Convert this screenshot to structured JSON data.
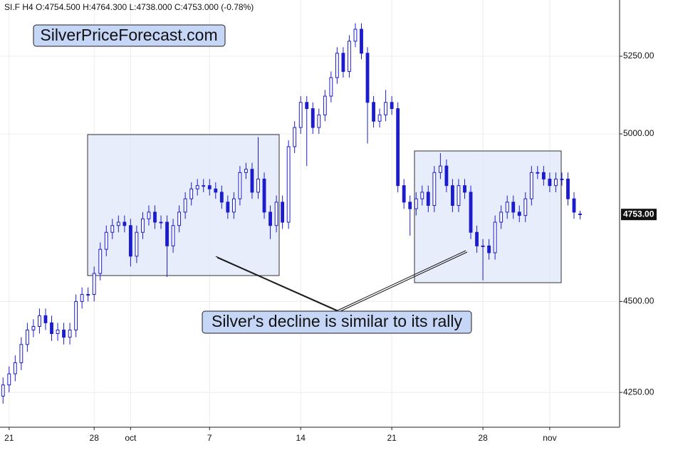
{
  "chart_data": {
    "type": "candlestick",
    "title": "SI.F  H4  O:4754.500  H:4764.300  L:4738.000  C:4753.000  (-0.78%)",
    "watermark": "SilverPriceForecast.com",
    "annotation": "Silver's decline is similar to its rally",
    "color": "#1c1ccf",
    "log_scale": true,
    "grid": true,
    "xlim": [
      -0.5,
      101.5
    ],
    "ylim": [
      4158,
      5439
    ],
    "yticks": [
      {
        "value": 4250,
        "label": "4250.00"
      },
      {
        "value": 4500,
        "label": "4500.00"
      },
      {
        "value": 5000,
        "label": "5000.00"
      },
      {
        "value": 5250,
        "label": "5250.00"
      }
    ],
    "xticks": [
      {
        "value": 1,
        "label": "21"
      },
      {
        "value": 15,
        "label": "28"
      },
      {
        "value": 21,
        "label": "oct"
      },
      {
        "value": 34,
        "label": "7"
      },
      {
        "value": 49,
        "label": "14"
      },
      {
        "value": 64,
        "label": "21"
      },
      {
        "value": 79,
        "label": "28"
      },
      {
        "value": 90,
        "label": "nov"
      }
    ],
    "last_price": {
      "value": 4753,
      "label": "4753.00"
    },
    "open": [
      4240,
      4270,
      4300,
      4330,
      4380,
      4420,
      4430,
      4460,
      4440,
      4410,
      4420,
      4400,
      4420,
      4500,
      4520,
      4520,
      4580,
      4650,
      4700,
      4720,
      4730,
      4720,
      4630,
      4700,
      4740,
      4760,
      4730,
      4730,
      4660,
      4720,
      4760,
      4800,
      4830,
      4840,
      4840,
      4830,
      4820,
      4790,
      4760,
      4800,
      4880,
      4890,
      4820,
      4860,
      4760,
      4720,
      4790,
      4730,
      4960,
      5020,
      5100,
      5080,
      5020,
      5060,
      5120,
      5180,
      5260,
      5200,
      5300,
      5340,
      5260,
      5100,
      5040,
      5060,
      5100,
      5080,
      4840,
      4790,
      4770,
      4800,
      4820,
      4780,
      4880,
      4900,
      4840,
      4780,
      4840,
      4820,
      4700,
      4660,
      4660,
      4640,
      4730,
      4760,
      4790,
      4760,
      4750,
      4800,
      4880,
      4880,
      4860,
      4840,
      4860,
      4860,
      4800,
      4754.5
    ],
    "high": [
      4290,
      4320,
      4350,
      4400,
      4440,
      4450,
      4480,
      4480,
      4460,
      4440,
      4440,
      4440,
      4520,
      4540,
      4540,
      4600,
      4670,
      4720,
      4740,
      4750,
      4750,
      4740,
      4720,
      4760,
      4780,
      4780,
      4750,
      4750,
      4740,
      4780,
      4820,
      4850,
      4860,
      4860,
      4860,
      4850,
      4840,
      4810,
      4820,
      4900,
      4910,
      4910,
      4990,
      4880,
      4780,
      4810,
      4810,
      4980,
      5040,
      5120,
      5120,
      5100,
      5080,
      5140,
      5200,
      5280,
      5280,
      5320,
      5360,
      5360,
      5280,
      5120,
      5080,
      5140,
      5120,
      5100,
      4860,
      4810,
      4820,
      4840,
      4840,
      4900,
      4940,
      4920,
      4860,
      4860,
      4860,
      4840,
      4720,
      4680,
      4680,
      4750,
      4780,
      4810,
      4810,
      4780,
      4820,
      4900,
      4900,
      4900,
      4880,
      4880,
      4880,
      4880,
      4820,
      4764.3
    ],
    "low": [
      4220,
      4250,
      4280,
      4310,
      4360,
      4400,
      4410,
      4420,
      4390,
      4390,
      4380,
      4380,
      4400,
      4480,
      4500,
      4500,
      4560,
      4630,
      4680,
      4700,
      4700,
      4600,
      4610,
      4680,
      4720,
      4710,
      4710,
      4570,
      4640,
      4700,
      4740,
      4780,
      4810,
      4820,
      4810,
      4800,
      4770,
      4740,
      4740,
      4780,
      4860,
      4800,
      4800,
      4740,
      4680,
      4700,
      4710,
      4710,
      4940,
      5000,
      4900,
      5000,
      5000,
      5040,
      5100,
      5160,
      5180,
      5180,
      5280,
      5240,
      4970,
      5020,
      5020,
      5040,
      5060,
      4820,
      4770,
      4690,
      4750,
      4780,
      4760,
      4760,
      4860,
      4820,
      4760,
      4760,
      4800,
      4680,
      4640,
      4560,
      4620,
      4620,
      4710,
      4740,
      4740,
      4730,
      4730,
      4780,
      4860,
      4840,
      4820,
      4820,
      4840,
      4780,
      4740,
      4738
    ],
    "close": [
      4270,
      4300,
      4330,
      4380,
      4420,
      4430,
      4460,
      4440,
      4410,
      4420,
      4400,
      4420,
      4500,
      4520,
      4520,
      4580,
      4650,
      4700,
      4720,
      4730,
      4720,
      4630,
      4700,
      4740,
      4760,
      4730,
      4730,
      4660,
      4720,
      4760,
      4800,
      4830,
      4840,
      4840,
      4830,
      4820,
      4790,
      4760,
      4800,
      4880,
      4890,
      4820,
      4860,
      4760,
      4720,
      4790,
      4730,
      4960,
      5020,
      5100,
      5080,
      5020,
      5060,
      5120,
      5180,
      5260,
      5200,
      5300,
      5340,
      5260,
      5100,
      5040,
      5060,
      5100,
      5080,
      4840,
      4790,
      4770,
      4800,
      4820,
      4780,
      4880,
      4900,
      4840,
      4780,
      4840,
      4820,
      4700,
      4660,
      4660,
      4640,
      4730,
      4760,
      4790,
      4760,
      4750,
      4800,
      4880,
      4880,
      4860,
      4840,
      4860,
      4860,
      4800,
      4760,
      4753
    ]
  }
}
